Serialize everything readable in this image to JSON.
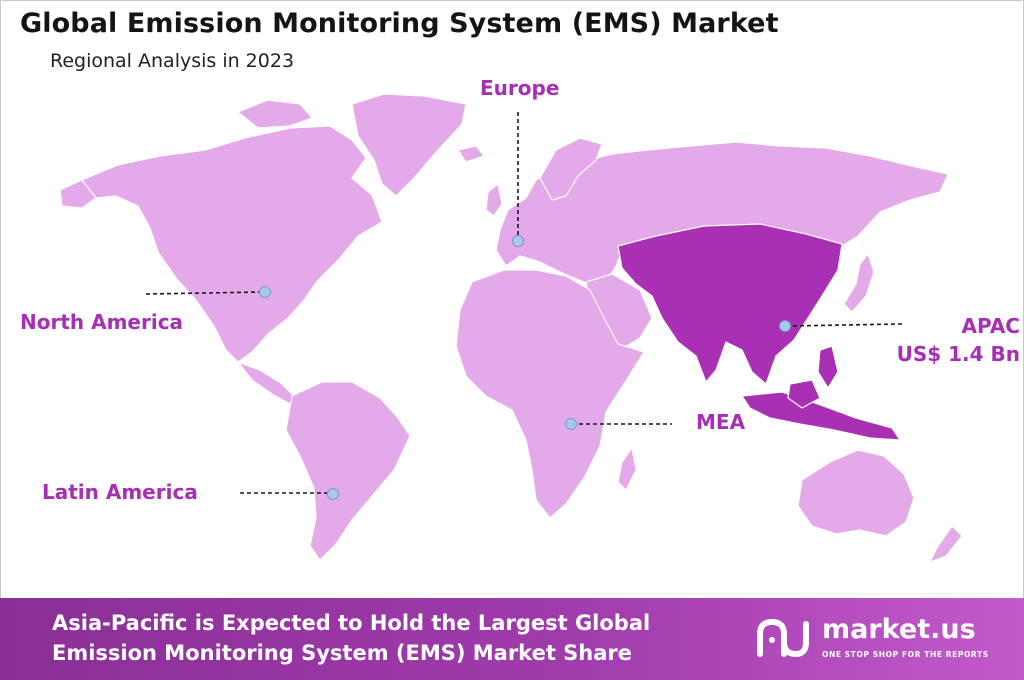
{
  "title": "Global Emission Monitoring System (EMS) Market",
  "subtitle": "Regional Analysis in 2023",
  "colors": {
    "land_light": "#e3a9e8",
    "land_apac": "#a930b5",
    "label_purple": "#a62fb4",
    "marker": "#a9c7ee",
    "footer_start": "#8a2f95",
    "footer_end": "#c25acb"
  },
  "regions": [
    {
      "id": "europe",
      "name": "Europe",
      "value": "",
      "highlighted": false
    },
    {
      "id": "north-america",
      "name": "North America",
      "value": "",
      "highlighted": false
    },
    {
      "id": "apac",
      "name": "APAC",
      "value": "US$ 1.4 Bn",
      "highlighted": true
    },
    {
      "id": "mea",
      "name": "MEA",
      "value": "",
      "highlighted": false
    },
    {
      "id": "latin-america",
      "name": "Latin America",
      "value": "",
      "highlighted": false
    }
  ],
  "footer": {
    "line1": "Asia-Pacific is Expected to Hold the Largest Global",
    "line2": "Emission Monitoring System (EMS) Market Share"
  },
  "brand": {
    "name": "market.us",
    "tagline": "ONE STOP SHOP FOR THE REPORTS",
    "icon": "market-us-logo-icon"
  }
}
